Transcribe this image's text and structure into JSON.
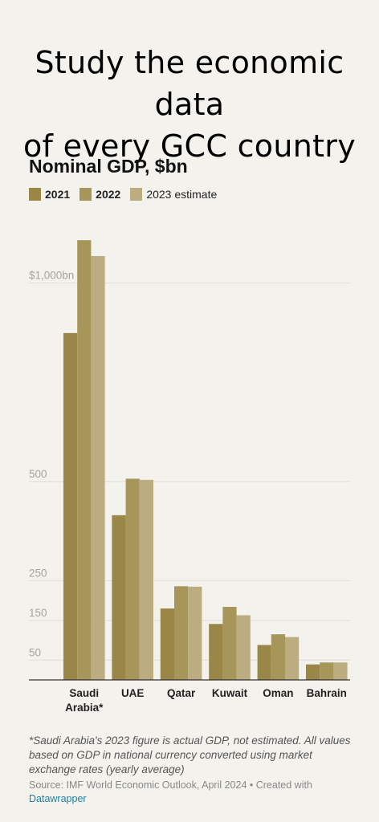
{
  "headline": {
    "line1": "Study the economic data",
    "line2": "of every GCC country"
  },
  "footnote": "*Saudi Arabia's 2023 figure is actual GDP, not estimated. All values based on GDP in national currency converted using market exchange rates (yearly average)",
  "source": {
    "text": "Source: IMF World Economic Outlook, April 2024 • Created with",
    "link": "Datawrapper"
  },
  "chart_data": {
    "type": "bar",
    "title": "Nominal GDP, $bn",
    "categories": [
      "Saudi\nArabia*",
      "UAE",
      "Qatar",
      "Kuwait",
      "Oman",
      "Bahrain"
    ],
    "series": [
      {
        "name": "2021",
        "values": [
          874,
          415,
          180,
          141,
          88,
          39
        ],
        "color": "#9a8646"
      },
      {
        "name": "2022",
        "values": [
          1108,
          507,
          236,
          184,
          115,
          44
        ],
        "color": "#a6965a"
      },
      {
        "name": "2023 estimate",
        "values": [
          1068,
          504,
          235,
          163,
          108,
          44
        ],
        "color": "#bcad80"
      }
    ],
    "yticks": [
      {
        "value": 50,
        "label": "50"
      },
      {
        "value": 150,
        "label": "150"
      },
      {
        "value": 250,
        "label": "250"
      },
      {
        "value": 500,
        "label": "500"
      },
      {
        "value": 1000,
        "label": "$1,000bn"
      }
    ],
    "ylim": [
      0,
      1120
    ],
    "grid": true,
    "legend_position": "top-left"
  }
}
